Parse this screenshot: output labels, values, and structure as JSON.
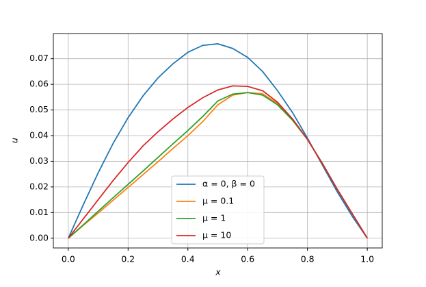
{
  "chart_data": {
    "type": "line",
    "x_label": "x",
    "y_label": "u",
    "x": [
      0,
      0.05,
      0.1,
      0.15,
      0.2,
      0.25,
      0.3,
      0.35,
      0.4,
      0.45,
      0.5,
      0.55,
      0.6,
      0.65,
      0.7,
      0.75,
      0.8,
      0.85,
      0.9,
      0.95,
      1.0
    ],
    "series": [
      {
        "name": "α = 0, β = 0",
        "color": "#1f77b4",
        "values": [
          0,
          0.013,
          0.0255,
          0.037,
          0.047,
          0.0555,
          0.0625,
          0.068,
          0.0725,
          0.0752,
          0.0758,
          0.074,
          0.0705,
          0.065,
          0.0575,
          0.049,
          0.039,
          0.0285,
          0.018,
          0.0085,
          0
        ]
      },
      {
        "name": "μ = 0.1",
        "color": "#ff7f0e",
        "values": [
          0,
          0.005,
          0.0098,
          0.0148,
          0.0198,
          0.0248,
          0.0298,
          0.035,
          0.04,
          0.0455,
          0.052,
          0.0558,
          0.0568,
          0.0563,
          0.0525,
          0.0465,
          0.0385,
          0.029,
          0.019,
          0.0095,
          0
        ]
      },
      {
        "name": "μ = 1",
        "color": "#2ca02c",
        "values": [
          0,
          0.0052,
          0.0105,
          0.0158,
          0.021,
          0.0262,
          0.0315,
          0.0368,
          0.042,
          0.0475,
          0.0535,
          0.0562,
          0.0568,
          0.0558,
          0.052,
          0.046,
          0.0385,
          0.0292,
          0.019,
          0.0095,
          0
        ]
      },
      {
        "name": "μ = 10",
        "color": "#d62728",
        "values": [
          0,
          0.0075,
          0.015,
          0.0225,
          0.0295,
          0.036,
          0.0415,
          0.0465,
          0.051,
          0.0548,
          0.0578,
          0.0594,
          0.0592,
          0.0575,
          0.053,
          0.0465,
          0.0385,
          0.029,
          0.019,
          0.0095,
          0
        ]
      }
    ],
    "xlim": [
      -0.05,
      1.05
    ],
    "ylim": [
      -0.0038,
      0.0798
    ],
    "xticks": [
      {
        "value": 0,
        "label": "0.0"
      },
      0.2,
      0.4,
      0.6,
      0.8,
      {
        "value": 1,
        "label": "1.0"
      }
    ],
    "yticks": [
      {
        "value": 0,
        "label": "0.00"
      },
      {
        "value": 0.01,
        "label": "0.01"
      },
      {
        "value": 0.02,
        "label": "0.02"
      },
      {
        "value": 0.03,
        "label": "0.03"
      },
      {
        "value": 0.04,
        "label": "0.04"
      },
      {
        "value": 0.05,
        "label": "0.05"
      },
      {
        "value": 0.06,
        "label": "0.06"
      },
      {
        "value": 0.07,
        "label": "0.07"
      }
    ],
    "grid": true,
    "legend": "lower center"
  }
}
